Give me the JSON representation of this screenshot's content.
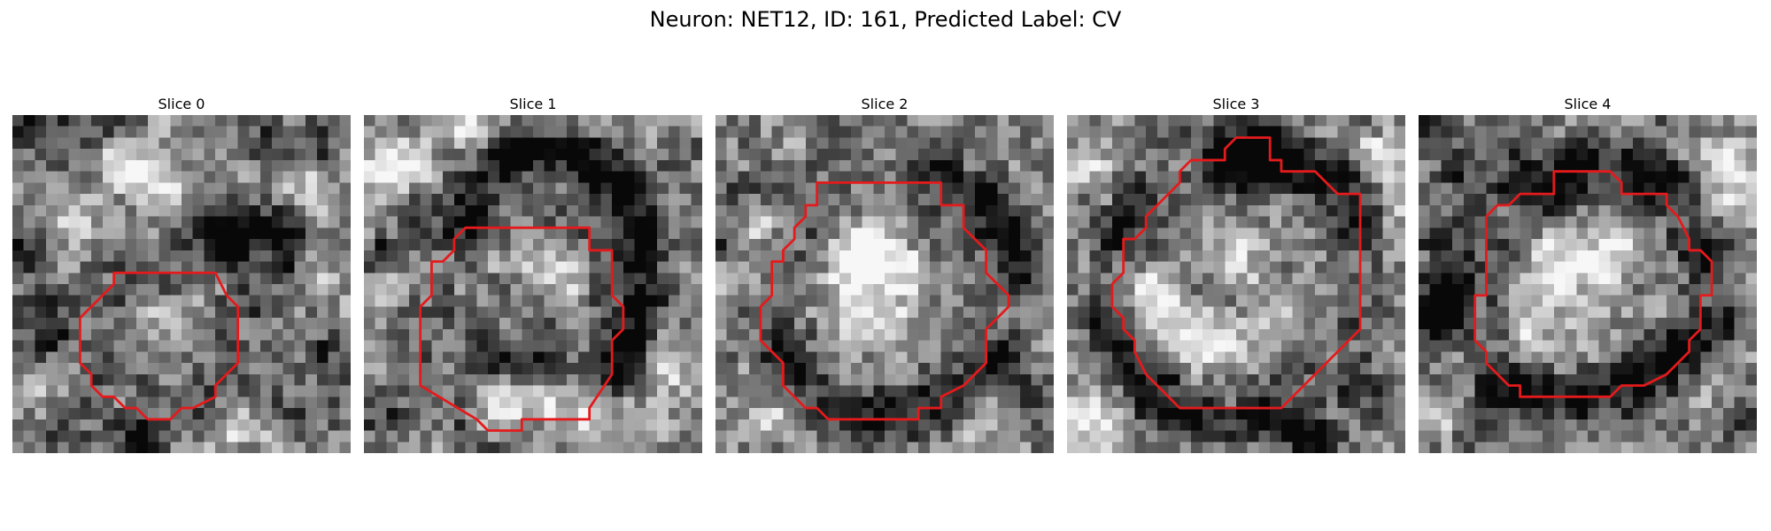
{
  "figure": {
    "title": "Neuron: NET12, ID: 161, Predicted Label: CV",
    "grid_size": 30
  },
  "colors": {
    "contour": "#e41a1c",
    "background": "#ffffff"
  },
  "panels": [
    {
      "title": "Slice 0",
      "contour": [
        [
          9,
          14
        ],
        [
          12,
          14
        ],
        [
          18,
          14
        ],
        [
          19,
          16
        ],
        [
          20,
          17
        ],
        [
          20,
          22
        ],
        [
          18,
          24
        ],
        [
          18,
          25
        ],
        [
          16,
          26
        ],
        [
          15,
          26
        ],
        [
          14,
          27
        ],
        [
          12,
          27
        ],
        [
          11,
          26
        ],
        [
          10,
          26
        ],
        [
          9,
          25
        ],
        [
          8,
          25
        ],
        [
          7,
          24
        ],
        [
          7,
          23
        ],
        [
          6,
          22
        ],
        [
          6,
          18
        ],
        [
          7,
          17
        ],
        [
          8,
          16
        ],
        [
          9,
          15
        ]
      ],
      "dark": [
        [
          1,
          1,
          0.35
        ],
        [
          4,
          1,
          0.3
        ],
        [
          8,
          0,
          0.4
        ],
        [
          22,
          2,
          0.25
        ],
        [
          27,
          3,
          0.3
        ],
        [
          16,
          9,
          0.3
        ],
        [
          18,
          10,
          0.35
        ],
        [
          21,
          10,
          0.45
        ],
        [
          24,
          10,
          0.35
        ],
        [
          24,
          13,
          0.4
        ],
        [
          19,
          12,
          0.3
        ],
        [
          3,
          20,
          0.3
        ],
        [
          2,
          17,
          0.25
        ],
        [
          11,
          29,
          0.5
        ],
        [
          5,
          27,
          0.3
        ],
        [
          26,
          26,
          0.3
        ],
        [
          28,
          21,
          0.25
        ],
        [
          1,
          12,
          0.3
        ]
      ],
      "light": [
        [
          10,
          5,
          0.4
        ],
        [
          12,
          4,
          0.3
        ],
        [
          14,
          7,
          0.35
        ],
        [
          6,
          9,
          0.3
        ],
        [
          26,
          7,
          0.3
        ],
        [
          14,
          18,
          0.3
        ],
        [
          4,
          24,
          0.25
        ],
        [
          20,
          28,
          0.3
        ],
        [
          27,
          13,
          0.25
        ]
      ]
    },
    {
      "title": "Slice 1",
      "contour": [
        [
          9,
          10
        ],
        [
          20,
          10
        ],
        [
          20,
          12
        ],
        [
          22,
          12
        ],
        [
          22,
          16
        ],
        [
          23,
          17
        ],
        [
          23,
          19
        ],
        [
          22,
          20
        ],
        [
          22,
          23
        ],
        [
          20,
          26
        ],
        [
          20,
          27
        ],
        [
          18,
          27
        ],
        [
          14,
          27
        ],
        [
          14,
          28
        ],
        [
          11,
          28
        ],
        [
          10,
          27
        ],
        [
          5,
          24
        ],
        [
          5,
          17
        ],
        [
          6,
          16
        ],
        [
          6,
          13
        ],
        [
          7,
          13
        ],
        [
          8,
          12
        ],
        [
          8,
          11
        ]
      ],
      "dark": [
        [
          12,
          4,
          0.3
        ],
        [
          14,
          3,
          0.45
        ],
        [
          16,
          3,
          0.5
        ],
        [
          19,
          3,
          0.45
        ],
        [
          21,
          5,
          0.45
        ],
        [
          23,
          6,
          0.4
        ],
        [
          24,
          9,
          0.45
        ],
        [
          25,
          12,
          0.5
        ],
        [
          25,
          16,
          0.5
        ],
        [
          24,
          20,
          0.45
        ],
        [
          23,
          23,
          0.35
        ],
        [
          10,
          6,
          0.35
        ],
        [
          9,
          9,
          0.35
        ],
        [
          11,
          21,
          0.3
        ],
        [
          14,
          22,
          0.35
        ],
        [
          17,
          21,
          0.35
        ],
        [
          2,
          12,
          0.35
        ],
        [
          4,
          8,
          0.3
        ],
        [
          1,
          27,
          0.3
        ],
        [
          27,
          2,
          0.25
        ]
      ],
      "light": [
        [
          2,
          5,
          0.4
        ],
        [
          4,
          4,
          0.3
        ],
        [
          1,
          9,
          0.3
        ],
        [
          3,
          15,
          0.3
        ],
        [
          15,
          13,
          0.3
        ],
        [
          18,
          14,
          0.25
        ],
        [
          12,
          26,
          0.4
        ],
        [
          16,
          26,
          0.45
        ],
        [
          20,
          27,
          0.4
        ],
        [
          25,
          27,
          0.35
        ],
        [
          27,
          22,
          0.35
        ],
        [
          9,
          1,
          0.35
        ],
        [
          17,
          0,
          0.3
        ],
        [
          26,
          1,
          0.3
        ]
      ]
    },
    {
      "title": "Slice 2",
      "contour": [
        [
          9,
          6
        ],
        [
          20,
          6
        ],
        [
          20,
          8
        ],
        [
          22,
          8
        ],
        [
          22,
          10
        ],
        [
          24,
          12
        ],
        [
          24,
          14
        ],
        [
          25,
          15
        ],
        [
          26,
          16
        ],
        [
          26,
          17
        ],
        [
          25,
          18
        ],
        [
          24,
          19
        ],
        [
          24,
          22
        ],
        [
          23,
          23
        ],
        [
          22,
          24
        ],
        [
          20,
          25
        ],
        [
          20,
          26
        ],
        [
          18,
          26
        ],
        [
          18,
          27
        ],
        [
          10,
          27
        ],
        [
          9,
          26
        ],
        [
          8,
          26
        ],
        [
          6,
          24
        ],
        [
          6,
          22
        ],
        [
          5,
          21
        ],
        [
          4,
          20
        ],
        [
          4,
          17
        ],
        [
          5,
          16
        ],
        [
          5,
          13
        ],
        [
          6,
          13
        ],
        [
          6,
          12
        ],
        [
          7,
          11
        ],
        [
          7,
          10
        ],
        [
          8,
          9
        ],
        [
          8,
          8
        ],
        [
          9,
          8
        ]
      ],
      "dark": [
        [
          20,
          5,
          0.35
        ],
        [
          24,
          7,
          0.45
        ],
        [
          26,
          10,
          0.5
        ],
        [
          27,
          14,
          0.45
        ],
        [
          26,
          20,
          0.35
        ],
        [
          25,
          23,
          0.35
        ],
        [
          6,
          20,
          0.3
        ],
        [
          7,
          23,
          0.35
        ],
        [
          10,
          26,
          0.3
        ],
        [
          14,
          27,
          0.35
        ],
        [
          17,
          26,
          0.3
        ],
        [
          21,
          26,
          0.3
        ],
        [
          3,
          7,
          0.3
        ],
        [
          1,
          12,
          0.3
        ],
        [
          28,
          25,
          0.25
        ]
      ],
      "light": [
        [
          4,
          10,
          0.35
        ],
        [
          2,
          14,
          0.3
        ],
        [
          13,
          12,
          0.5
        ],
        [
          14,
          13,
          0.4
        ],
        [
          12,
          15,
          0.3
        ],
        [
          17,
          14,
          0.3
        ],
        [
          15,
          18,
          0.3
        ],
        [
          12,
          19,
          0.3
        ],
        [
          27,
          18,
          0.3
        ],
        [
          24,
          27,
          0.35
        ],
        [
          5,
          27,
          0.3
        ]
      ]
    },
    {
      "title": "Slice 3",
      "contour": [
        [
          15,
          2
        ],
        [
          18,
          2
        ],
        [
          18,
          4
        ],
        [
          19,
          4
        ],
        [
          19,
          5
        ],
        [
          22,
          5
        ],
        [
          23,
          6
        ],
        [
          24,
          7
        ],
        [
          26,
          7
        ],
        [
          26,
          19
        ],
        [
          23,
          22
        ],
        [
          21,
          24
        ],
        [
          19,
          26
        ],
        [
          10,
          26
        ],
        [
          8,
          24
        ],
        [
          7,
          23
        ],
        [
          6,
          21
        ],
        [
          6,
          20
        ],
        [
          5,
          19
        ],
        [
          5,
          18
        ],
        [
          4,
          17
        ],
        [
          4,
          16
        ],
        [
          4,
          15
        ],
        [
          5,
          14
        ],
        [
          5,
          11
        ],
        [
          6,
          11
        ],
        [
          7,
          10
        ],
        [
          7,
          9
        ],
        [
          8,
          8
        ],
        [
          9,
          7
        ],
        [
          10,
          6
        ],
        [
          10,
          5
        ],
        [
          11,
          4
        ],
        [
          14,
          4
        ],
        [
          14,
          3
        ]
      ],
      "dark": [
        [
          15,
          3,
          0.45
        ],
        [
          17,
          3,
          0.5
        ],
        [
          19,
          4,
          0.5
        ],
        [
          16,
          5,
          0.45
        ],
        [
          13,
          4,
          0.35
        ],
        [
          21,
          5,
          0.35
        ],
        [
          24,
          6,
          0.35
        ],
        [
          26,
          9,
          0.3
        ],
        [
          6,
          7,
          0.3
        ],
        [
          4,
          11,
          0.35
        ],
        [
          3,
          19,
          0.3
        ],
        [
          5,
          23,
          0.35
        ],
        [
          8,
          25,
          0.4
        ],
        [
          12,
          27,
          0.35
        ],
        [
          17,
          27,
          0.4
        ],
        [
          21,
          28,
          0.5
        ],
        [
          23,
          29,
          0.4
        ],
        [
          26,
          24,
          0.3
        ]
      ],
      "light": [
        [
          7,
          15,
          0.4
        ],
        [
          8,
          18,
          0.4
        ],
        [
          11,
          20,
          0.35
        ],
        [
          15,
          13,
          0.35
        ],
        [
          18,
          18,
          0.3
        ],
        [
          14,
          20,
          0.3
        ],
        [
          3,
          27,
          0.35
        ],
        [
          1,
          29,
          0.3
        ],
        [
          28,
          4,
          0.35
        ],
        [
          29,
          9,
          0.3
        ],
        [
          2,
          4,
          0.3
        ]
      ]
    },
    {
      "title": "Slice 4",
      "contour": [
        [
          9,
          7
        ],
        [
          12,
          7
        ],
        [
          12,
          5
        ],
        [
          17,
          5
        ],
        [
          18,
          6
        ],
        [
          18,
          7
        ],
        [
          22,
          7
        ],
        [
          22,
          8
        ],
        [
          23,
          9
        ],
        [
          24,
          11
        ],
        [
          24,
          12
        ],
        [
          25,
          12
        ],
        [
          26,
          13
        ],
        [
          26,
          16
        ],
        [
          25,
          16
        ],
        [
          25,
          19
        ],
        [
          24,
          20
        ],
        [
          24,
          21
        ],
        [
          23,
          22
        ],
        [
          22,
          23
        ],
        [
          20,
          24
        ],
        [
          18,
          24
        ],
        [
          17,
          25
        ],
        [
          9,
          25
        ],
        [
          9,
          24
        ],
        [
          8,
          24
        ],
        [
          7,
          23
        ],
        [
          6,
          22
        ],
        [
          6,
          21
        ],
        [
          5,
          20
        ],
        [
          5,
          16
        ],
        [
          6,
          16
        ],
        [
          6,
          9
        ],
        [
          7,
          8
        ],
        [
          8,
          8
        ]
      ],
      "dark": [
        [
          9,
          5,
          0.45
        ],
        [
          12,
          6,
          0.4
        ],
        [
          15,
          4,
          0.35
        ],
        [
          19,
          5,
          0.4
        ],
        [
          22,
          6,
          0.35
        ],
        [
          3,
          15,
          0.5
        ],
        [
          2,
          17,
          0.5
        ],
        [
          1,
          18,
          0.45
        ],
        [
          2,
          11,
          0.35
        ],
        [
          4,
          5,
          0.3
        ],
        [
          8,
          24,
          0.45
        ],
        [
          11,
          25,
          0.4
        ],
        [
          15,
          25,
          0.4
        ],
        [
          19,
          24,
          0.35
        ],
        [
          22,
          22,
          0.4
        ],
        [
          24,
          20,
          0.4
        ],
        [
          25,
          12,
          0.35
        ],
        [
          27,
          18,
          0.3
        ],
        [
          28,
          27,
          0.3
        ],
        [
          5,
          28,
          0.3
        ],
        [
          1,
          1,
          0.35
        ]
      ],
      "light": [
        [
          13,
          12,
          0.4
        ],
        [
          16,
          13,
          0.35
        ],
        [
          11,
          15,
          0.35
        ],
        [
          15,
          17,
          0.3
        ],
        [
          18,
          11,
          0.3
        ],
        [
          10,
          20,
          0.3
        ],
        [
          27,
          4,
          0.35
        ],
        [
          29,
          8,
          0.3
        ],
        [
          26,
          25,
          0.25
        ],
        [
          2,
          27,
          0.25
        ]
      ]
    }
  ]
}
